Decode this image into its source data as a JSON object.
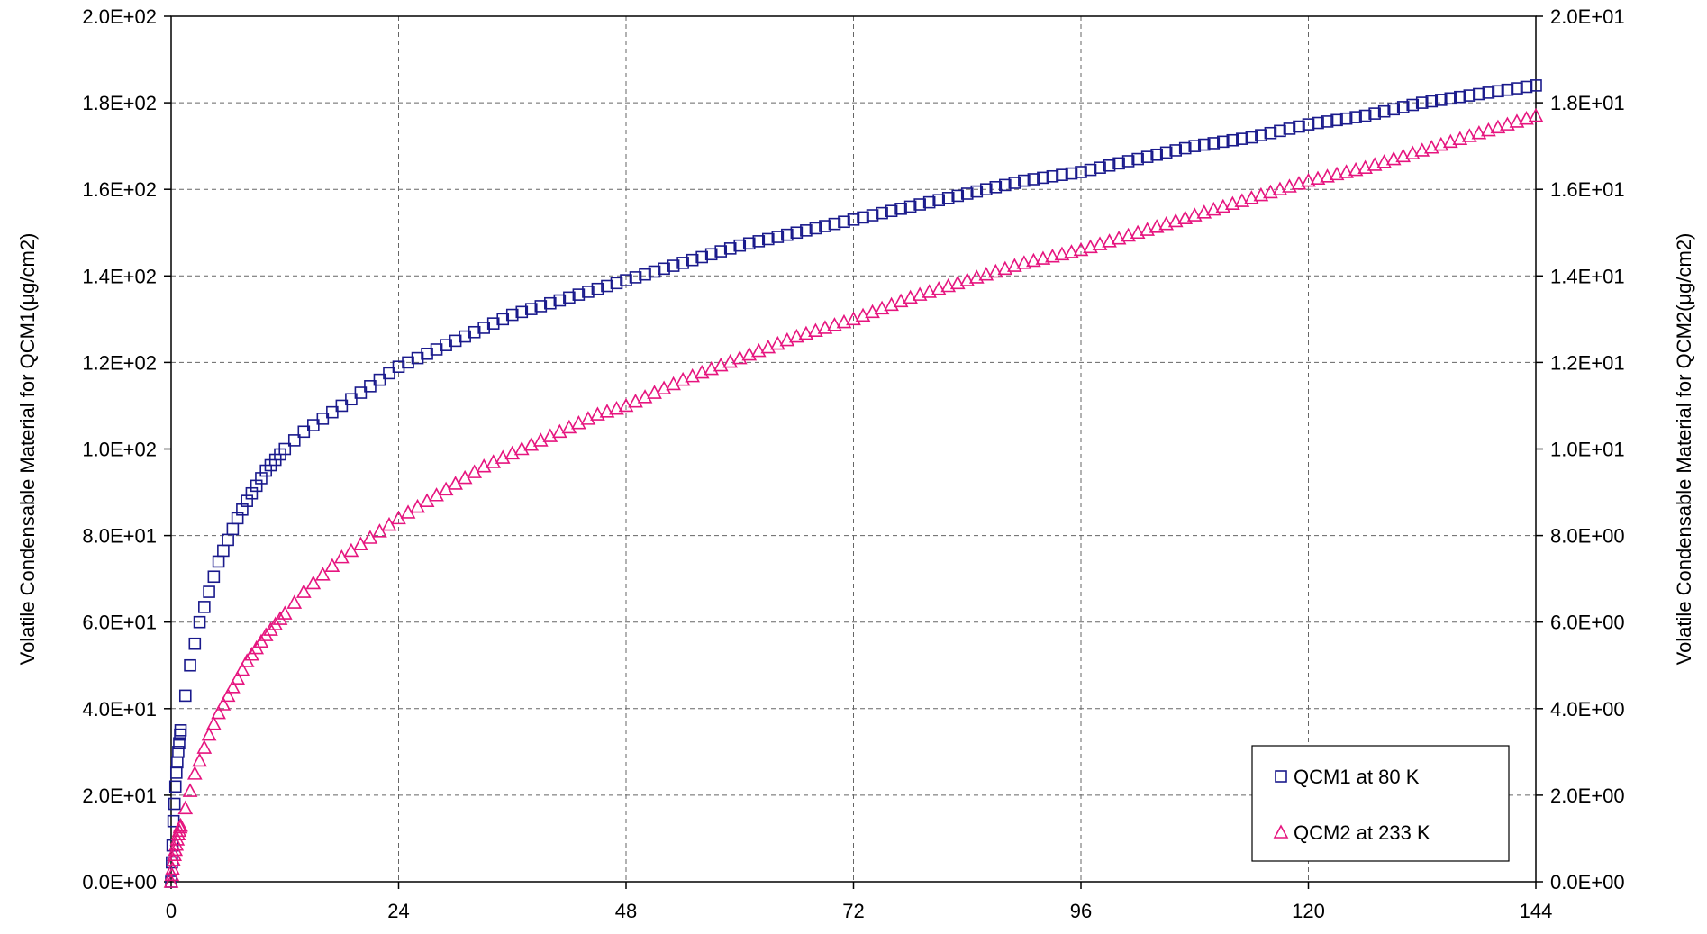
{
  "chart_data": {
    "type": "scatter",
    "title": "",
    "xlabel": "",
    "ylabel": "Volatile Condensable Material for QCM1(μg/cm2)",
    "y2label": "Volatile Condensable Material for QCM2(μg/cm2)",
    "xlim": [
      0,
      144
    ],
    "ylim": [
      0,
      200
    ],
    "y2lim": [
      0,
      20
    ],
    "x_ticks": [
      0,
      24,
      48,
      72,
      96,
      120,
      144
    ],
    "x_tick_labels": [
      "0",
      "24",
      "48",
      "72",
      "96",
      "120",
      "144"
    ],
    "y_ticks": [
      0,
      20,
      40,
      60,
      80,
      100,
      120,
      140,
      160,
      180,
      200
    ],
    "y_tick_labels": [
      "0.0E+00",
      "2.0E+01",
      "4.0E+01",
      "6.0E+01",
      "8.0E+01",
      "1.0E+02",
      "1.2E+02",
      "1.4E+02",
      "1.6E+02",
      "1.8E+02",
      "2.0E+02"
    ],
    "y2_ticks": [
      0,
      2,
      4,
      6,
      8,
      10,
      12,
      14,
      16,
      18,
      20
    ],
    "y2_tick_labels": [
      "0.0E+00",
      "2.0E+00",
      "4.0E+00",
      "6.0E+00",
      "8.0E+00",
      "1.0E+01",
      "1.2E+01",
      "1.4E+01",
      "1.6E+01",
      "1.8E+01",
      "2.0E+01"
    ],
    "grid": true,
    "legend_position": "bottom-right",
    "series": [
      {
        "name": "QCM1 at 80 K",
        "axis": "left",
        "marker": "square",
        "color": "#1a1a8c",
        "x": [
          0,
          0.25,
          0.5,
          0.75,
          1,
          1.5,
          2,
          2.5,
          3,
          4,
          5,
          6,
          7,
          8,
          10,
          12,
          14,
          16,
          18,
          20,
          22,
          24,
          27,
          30,
          33,
          36,
          39,
          42,
          45,
          48,
          54,
          60,
          66,
          72,
          78,
          84,
          90,
          96,
          102,
          108,
          114,
          120,
          126,
          132,
          138,
          144
        ],
        "y": [
          0,
          14,
          24,
          30,
          35,
          43,
          50,
          55,
          60,
          67,
          74,
          79,
          84,
          88,
          95,
          100,
          104,
          107,
          110,
          113,
          116,
          119,
          122,
          125,
          128,
          131,
          133,
          135,
          137,
          139,
          143,
          147,
          150,
          153,
          156,
          159,
          162,
          164,
          167,
          170,
          172,
          175,
          177,
          180,
          182,
          184
        ]
      },
      {
        "name": "QCM2 at 233 K",
        "axis": "right",
        "marker": "triangle",
        "color": "#e6157f",
        "x": [
          0,
          0.25,
          0.5,
          0.75,
          1,
          1.5,
          2,
          2.5,
          3,
          4,
          5,
          6,
          7,
          8,
          10,
          12,
          14,
          16,
          18,
          20,
          22,
          24,
          27,
          30,
          33,
          36,
          39,
          42,
          45,
          48,
          54,
          60,
          66,
          72,
          78,
          84,
          90,
          96,
          102,
          108,
          114,
          120,
          126,
          132,
          138,
          144
        ],
        "y": [
          0,
          0.5,
          0.8,
          1.1,
          1.3,
          1.7,
          2.1,
          2.5,
          2.8,
          3.4,
          3.9,
          4.3,
          4.7,
          5.1,
          5.7,
          6.2,
          6.7,
          7.1,
          7.5,
          7.8,
          8.1,
          8.4,
          8.8,
          9.2,
          9.6,
          9.9,
          10.2,
          10.5,
          10.8,
          11.0,
          11.6,
          12.1,
          12.6,
          13.0,
          13.5,
          13.9,
          14.3,
          14.6,
          15.0,
          15.4,
          15.8,
          16.2,
          16.5,
          16.9,
          17.3,
          17.7
        ]
      }
    ]
  }
}
